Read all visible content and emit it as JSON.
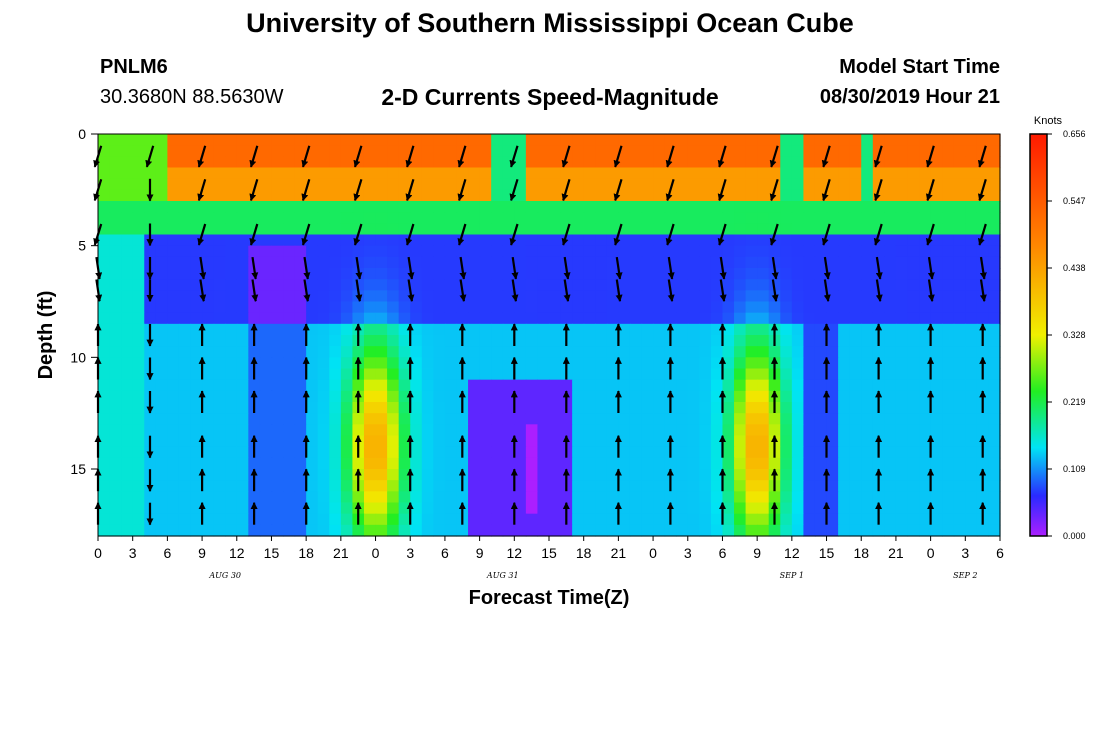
{
  "header": {
    "title": "University of Southern Mississippi Ocean Cube",
    "station_id": "PNLM6",
    "coordinates": "30.3680N 88.5630W",
    "subtitle": "2-D Currents Speed-Magnitude",
    "model_start_label": "Model Start Time",
    "model_start_value": "08/30/2019 Hour 21"
  },
  "footer": {
    "title": "University of Southern Mississippi Ocean Cube"
  },
  "chart_data": {
    "type": "heatmap",
    "title": "2-D Currents Speed-Magnitude",
    "xlabel": "Forecast Time(Z)",
    "ylabel": "Depth (ft)",
    "x_range_hours": [
      0,
      78
    ],
    "y_range_ft": [
      0,
      18
    ],
    "y_ticks": [
      0,
      5,
      10,
      15
    ],
    "x_ticks": [
      "0",
      "3",
      "6",
      "9",
      "12",
      "15",
      "18",
      "21",
      "0",
      "3",
      "6",
      "9",
      "12",
      "15",
      "18",
      "21",
      "0",
      "3",
      "6",
      "9",
      "12",
      "15",
      "18",
      "21",
      "0",
      "3",
      "6"
    ],
    "date_labels": [
      {
        "hour": 11,
        "label": "AUG 30"
      },
      {
        "hour": 35,
        "label": "AUG 31"
      },
      {
        "hour": 60,
        "label": "SEP 1"
      },
      {
        "hour": 75,
        "label": "SEP 2"
      }
    ],
    "colorbar": {
      "unit": "Knots",
      "ticks": [
        "0.000",
        "0.109",
        "0.219",
        "0.328",
        "0.438",
        "0.547",
        "0.656"
      ],
      "min": 0,
      "max": 0.656
    }
  }
}
